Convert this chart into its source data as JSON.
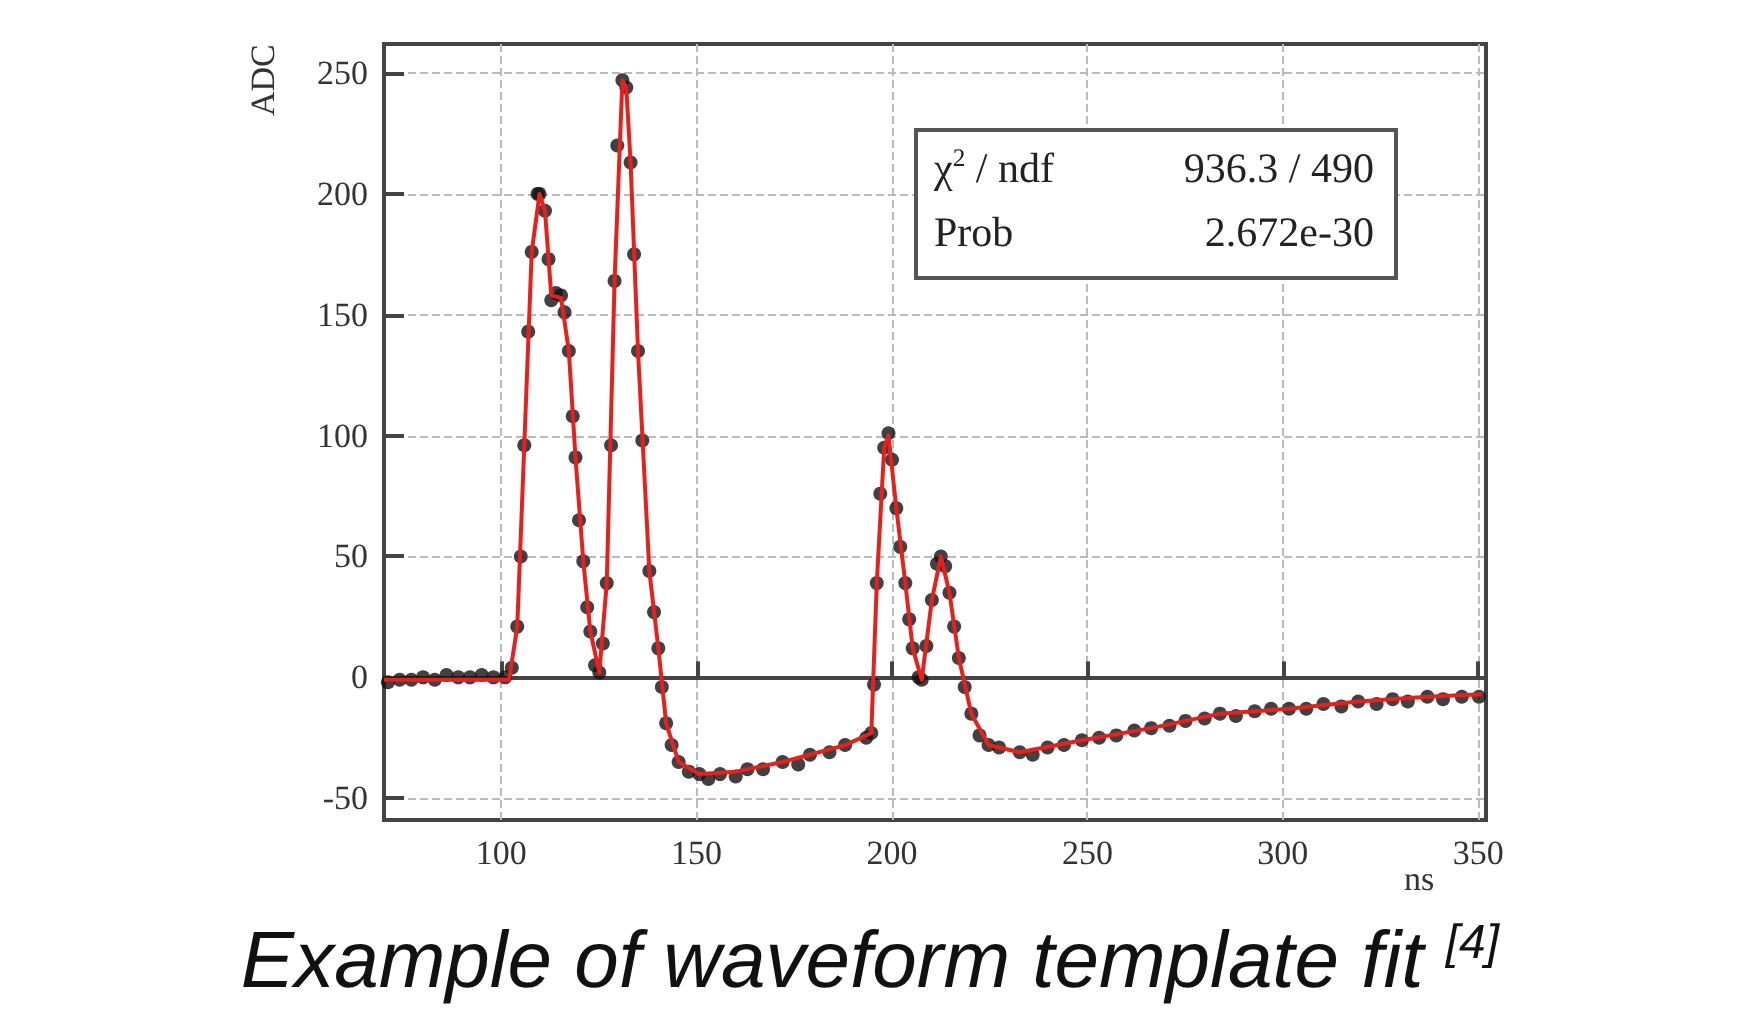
{
  "chart_data": {
    "type": "scatter",
    "xlabel": "ns",
    "ylabel": "ADC",
    "xlim": [
      70,
      352
    ],
    "xticks": [
      100,
      150,
      200,
      250,
      300,
      350
    ],
    "ylim": [
      -59,
      262
    ],
    "yticks": [
      -50,
      0,
      50,
      100,
      150,
      200,
      250
    ],
    "grid": true,
    "marker": "circle",
    "line_style": "solid",
    "annotations": [
      "χ$^{2}$ / ndf",
      "936.3 / 490",
      "Prob",
      "2.672e-30",
      "Example of waveform template fit $^{[4]}$"
    ],
    "series": [
      {
        "color": "#111111",
        "x": [
          71,
          74,
          77,
          80,
          83,
          86,
          89,
          92,
          95,
          98,
          101,
          102.7,
          104.1,
          105,
          105.9,
          106.9,
          107.8,
          109.3,
          109.8,
          111.2,
          112.1,
          112.8,
          114,
          115.3,
          116.2,
          117.3,
          118.3,
          119,
          119.9,
          121,
          122,
          122.8,
          124,
          125.1,
          126,
          127,
          128.1,
          129,
          129.7,
          131,
          132,
          133.1,
          134,
          135,
          136.1,
          137.9,
          139.1,
          140.2,
          141.1,
          142.2,
          143.6,
          145.4,
          148,
          150.7,
          153,
          156,
          160,
          163,
          167,
          172,
          176,
          179,
          184,
          188,
          193.4,
          194.7,
          195.4,
          196.1,
          197,
          198,
          199.1,
          200,
          201.1,
          202.1,
          203.4,
          204.4,
          205.3,
          206.8,
          207.6,
          208.8,
          210.2,
          211.5,
          212.5,
          213.6,
          214.7,
          215.9,
          217.1,
          218.6,
          220.3,
          222.4,
          224.7,
          227.4,
          232.7,
          236,
          239.8,
          244,
          248.6,
          253,
          257.4,
          262,
          266.3,
          271,
          275.1,
          280,
          283.9,
          288,
          292.8,
          297,
          301.6,
          306,
          310.4,
          315,
          319.3,
          324,
          328.1,
          332,
          337,
          341,
          345.8,
          350.2
        ],
        "values": [
          -2,
          -1,
          -1,
          0,
          -1,
          1,
          0,
          0,
          1,
          0,
          0,
          4,
          21,
          50,
          96,
          143,
          176,
          200,
          200,
          193,
          173,
          156,
          159,
          158,
          151,
          135,
          108,
          91,
          65,
          48,
          29,
          19,
          5,
          2,
          14,
          39,
          96,
          164,
          220,
          247,
          244,
          213,
          175,
          135,
          98,
          44,
          27,
          12,
          -4,
          -19,
          -28,
          -35,
          -39,
          -40,
          -42,
          -40,
          -41,
          -38,
          -38,
          -35,
          -36,
          -32,
          -31,
          -28,
          -25,
          -23,
          -3,
          39,
          76,
          95,
          101,
          90,
          70,
          54,
          39,
          24,
          12,
          0,
          -1,
          13,
          32,
          47,
          50,
          46,
          35,
          21,
          8,
          -4,
          -15,
          -24,
          -28,
          -29,
          -31,
          -32,
          -29,
          -28,
          -26,
          -25,
          -24,
          -22,
          -21,
          -20,
          -18,
          -17,
          -15,
          -16,
          -14,
          -13,
          -13,
          -13,
          -11,
          -12,
          -10,
          -11,
          -9,
          -10,
          -8,
          -9,
          -8,
          -8
        ]
      },
      {
        "type": "line",
        "marker": "none",
        "color": "#e8201c",
        "x": [
          70,
          102,
          104.1,
          105.9,
          107.8,
          109.8,
          111.2,
          112.8,
          115.3,
          117.3,
          119,
          121,
          122.8,
          125.1,
          127,
          129,
          131,
          132,
          133.1,
          135,
          137.9,
          140.2,
          142.2,
          145.4,
          150.7,
          160,
          172,
          188,
          194.7,
          196.1,
          198,
          199.1,
          201.1,
          203.4,
          205.3,
          207.6,
          210.2,
          212.5,
          214.7,
          217.1,
          220.3,
          224.7,
          232.7,
          248.6,
          266.3,
          283.9,
          301.6,
          319.3,
          337,
          351
        ],
        "values": [
          -1,
          -1,
          21,
          96,
          176,
          200,
          193,
          158,
          157,
          135,
          91,
          48,
          19,
          2,
          39,
          164,
          247,
          244,
          213,
          135,
          44,
          12,
          -19,
          -35,
          -40,
          -39,
          -35,
          -28,
          -23,
          39,
          95,
          100,
          70,
          39,
          12,
          -1,
          32,
          50,
          35,
          8,
          -15,
          -28,
          -31,
          -26,
          -21,
          -15,
          -13,
          -10,
          -8,
          -7
        ]
      }
    ]
  }
}
